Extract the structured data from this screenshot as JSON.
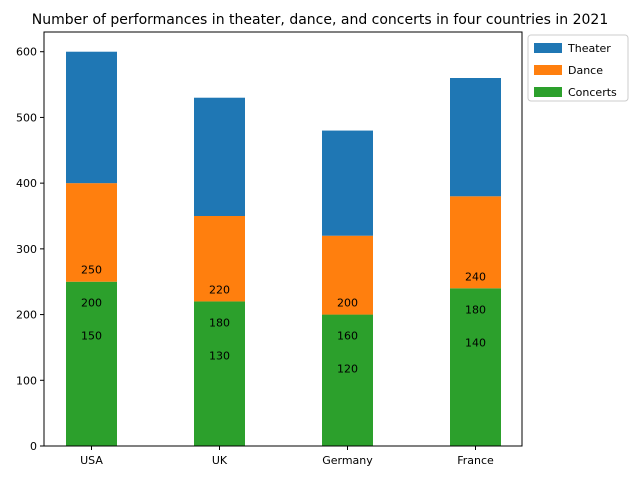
{
  "chart_data": {
    "type": "bar",
    "stacked": true,
    "title": "Number of performances in theater, dance, and concerts in four countries in 2021",
    "xlabel": "",
    "ylabel": "",
    "categories": [
      "USA",
      "UK",
      "Germany",
      "France"
    ],
    "ylim": [
      0,
      630
    ],
    "yticks": [
      0,
      100,
      200,
      300,
      400,
      500,
      600
    ],
    "grid": false,
    "legend_position": "outside-top-right",
    "series": [
      {
        "name": "Concerts",
        "color": "#2ca02c",
        "values": [
          250,
          220,
          200,
          240
        ]
      },
      {
        "name": "Dance",
        "color": "#ff7f0e",
        "values": [
          150,
          130,
          120,
          140
        ]
      },
      {
        "name": "Theater",
        "color": "#1f77b4",
        "values": [
          200,
          180,
          160,
          180
        ]
      }
    ],
    "legend_order": [
      "Theater",
      "Dance",
      "Concerts"
    ],
    "data_labels": [
      {
        "category": "USA",
        "values": [
          250,
          200,
          150
        ]
      },
      {
        "category": "UK",
        "values": [
          220,
          180,
          130
        ]
      },
      {
        "category": "Germany",
        "values": [
          200,
          160,
          120
        ]
      },
      {
        "category": "France",
        "values": [
          240,
          180,
          140
        ]
      }
    ]
  }
}
